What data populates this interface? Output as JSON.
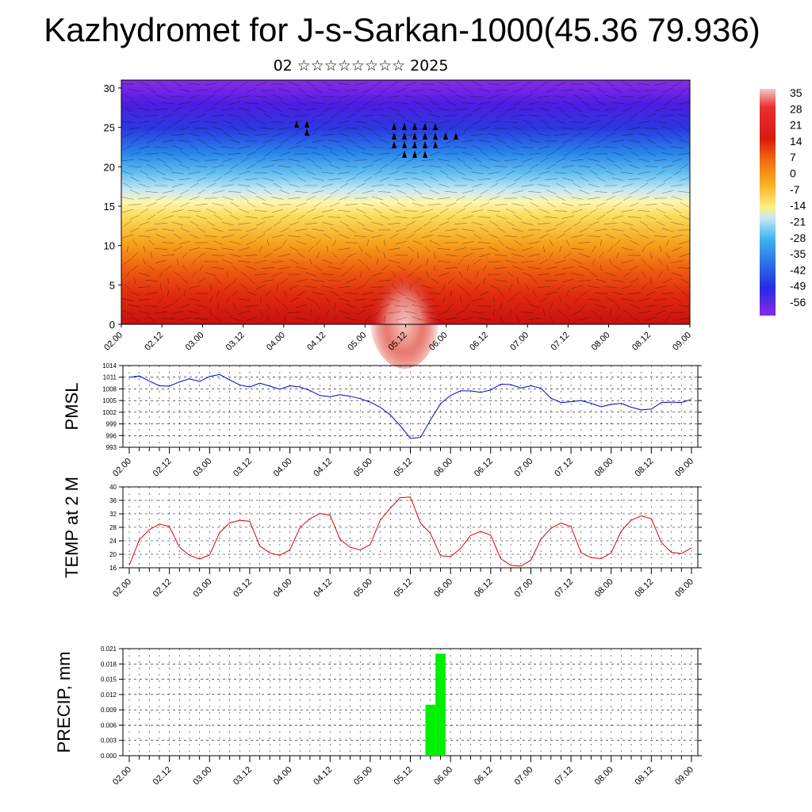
{
  "header": {
    "title": "Kazhydromet for J-s-Sarkan-1000(45.36 79.936)",
    "subtitle": "02 ☆☆☆☆☆☆☆☆ 2025"
  },
  "chart_data": [
    {
      "type": "heatmap",
      "name": "cross-section",
      "xlabel": "",
      "ylabel": "",
      "x_ticks": [
        "02.00",
        "02.12",
        "03.00",
        "03.12",
        "04.00",
        "04.12",
        "05.00",
        "05.12",
        "06.00",
        "06.12",
        "07.00",
        "07.12",
        "08.00",
        "08.12",
        "09.00"
      ],
      "y_ticks": [
        "0",
        "5",
        "10",
        "15",
        "20",
        "25",
        "30"
      ],
      "ylim": [
        0,
        31
      ],
      "colorbar_labels": [
        "35",
        "28",
        "21",
        "14",
        "7",
        "0",
        "-7",
        "-14",
        "-21",
        "-28",
        "-35",
        "-42",
        "-49",
        "-56"
      ],
      "colorscale_top": "#f4b8b8",
      "colorscale_bottom": "#7b20e0"
    },
    {
      "type": "line",
      "name": "pmsl",
      "ylabel": "PMSL",
      "ylim": [
        993,
        1014
      ],
      "y_ticks": [
        "1014",
        "1011",
        "1008",
        "1005",
        "1002",
        "999",
        "996",
        "993"
      ],
      "x_ticks": [
        "02.00",
        "02.12",
        "03.00",
        "03.12",
        "04.00",
        "04.12",
        "05.00",
        "05.12",
        "06.00",
        "06.12",
        "07.00",
        "07.12",
        "08.00",
        "08.12",
        "09.00"
      ],
      "color": "#0000cc",
      "series": [
        {
          "values": [
            1011,
            1011.3,
            1010,
            1008.8,
            1008.7,
            1009.8,
            1010.6,
            1009.9,
            1011.2,
            1011.7,
            1010.3,
            1009,
            1008.5,
            1009.5,
            1008.7,
            1007.9,
            1008.8,
            1008.5,
            1007.6,
            1006.3,
            1006,
            1006.5,
            1006.1,
            1005.5,
            1004.6,
            1003.3,
            1001.3,
            998.5,
            995.3,
            995.5,
            1000,
            1004.2,
            1006.3,
            1007.5,
            1007.5,
            1007.1,
            1007.7,
            1009.2,
            1009.1,
            1008.2,
            1008.8,
            1008.2,
            1005.6,
            1004.5,
            1004.7,
            1005,
            1004.3,
            1003.4,
            1004,
            1004.3,
            1003.3,
            1002.6,
            1002.8,
            1004.5,
            1004.6,
            1004.5,
            1005.3
          ]
        }
      ]
    },
    {
      "type": "line",
      "name": "temp",
      "ylabel": "TEMP at 2 M",
      "ylim": [
        16,
        40
      ],
      "y_ticks": [
        "40",
        "36",
        "32",
        "28",
        "24",
        "20",
        "16"
      ],
      "x_ticks": [
        "02.00",
        "02.12",
        "03.00",
        "03.12",
        "04.00",
        "04.12",
        "05.00",
        "05.12",
        "06.00",
        "06.12",
        "07.00",
        "07.12",
        "08.00",
        "08.12",
        "09.00"
      ],
      "color": "#dd0000",
      "series": [
        {
          "values": [
            16.7,
            24.3,
            27.3,
            29,
            28.2,
            22.1,
            19.7,
            18.6,
            19.8,
            26.4,
            29.3,
            30.1,
            29.8,
            22.5,
            20.4,
            19.7,
            21.3,
            27.9,
            30.6,
            32.1,
            31.6,
            24.4,
            22.1,
            21.3,
            22.9,
            30.1,
            33.7,
            36.8,
            37,
            29.3,
            26.2,
            19.6,
            19.3,
            21.7,
            25.6,
            26.8,
            25.7,
            18.7,
            16.7,
            16.5,
            18.2,
            24.5,
            27.7,
            29.3,
            28.2,
            20.5,
            19,
            18.7,
            20.4,
            26.9,
            30.1,
            31.4,
            30.6,
            23.5,
            20.6,
            20.2,
            21.9
          ]
        }
      ]
    },
    {
      "type": "bar",
      "name": "precip",
      "ylabel": "PRECIP, mm",
      "ylim": [
        0,
        0.021
      ],
      "y_ticks": [
        "0.021",
        "0.018",
        "0.015",
        "0.012",
        "0.009",
        "0.006",
        "0.003",
        "0.000"
      ],
      "x_ticks": [
        "02.00",
        "02.12",
        "03.00",
        "03.12",
        "04.00",
        "04.12",
        "05.00",
        "05.12",
        "06.00",
        "06.12",
        "07.00",
        "07.12",
        "08.00",
        "08.12",
        "09.00"
      ],
      "color": "#00ee00",
      "bars": [
        {
          "x_index": 30,
          "value": 0.01
        },
        {
          "x_index": 31,
          "value": 0.02
        }
      ]
    }
  ]
}
